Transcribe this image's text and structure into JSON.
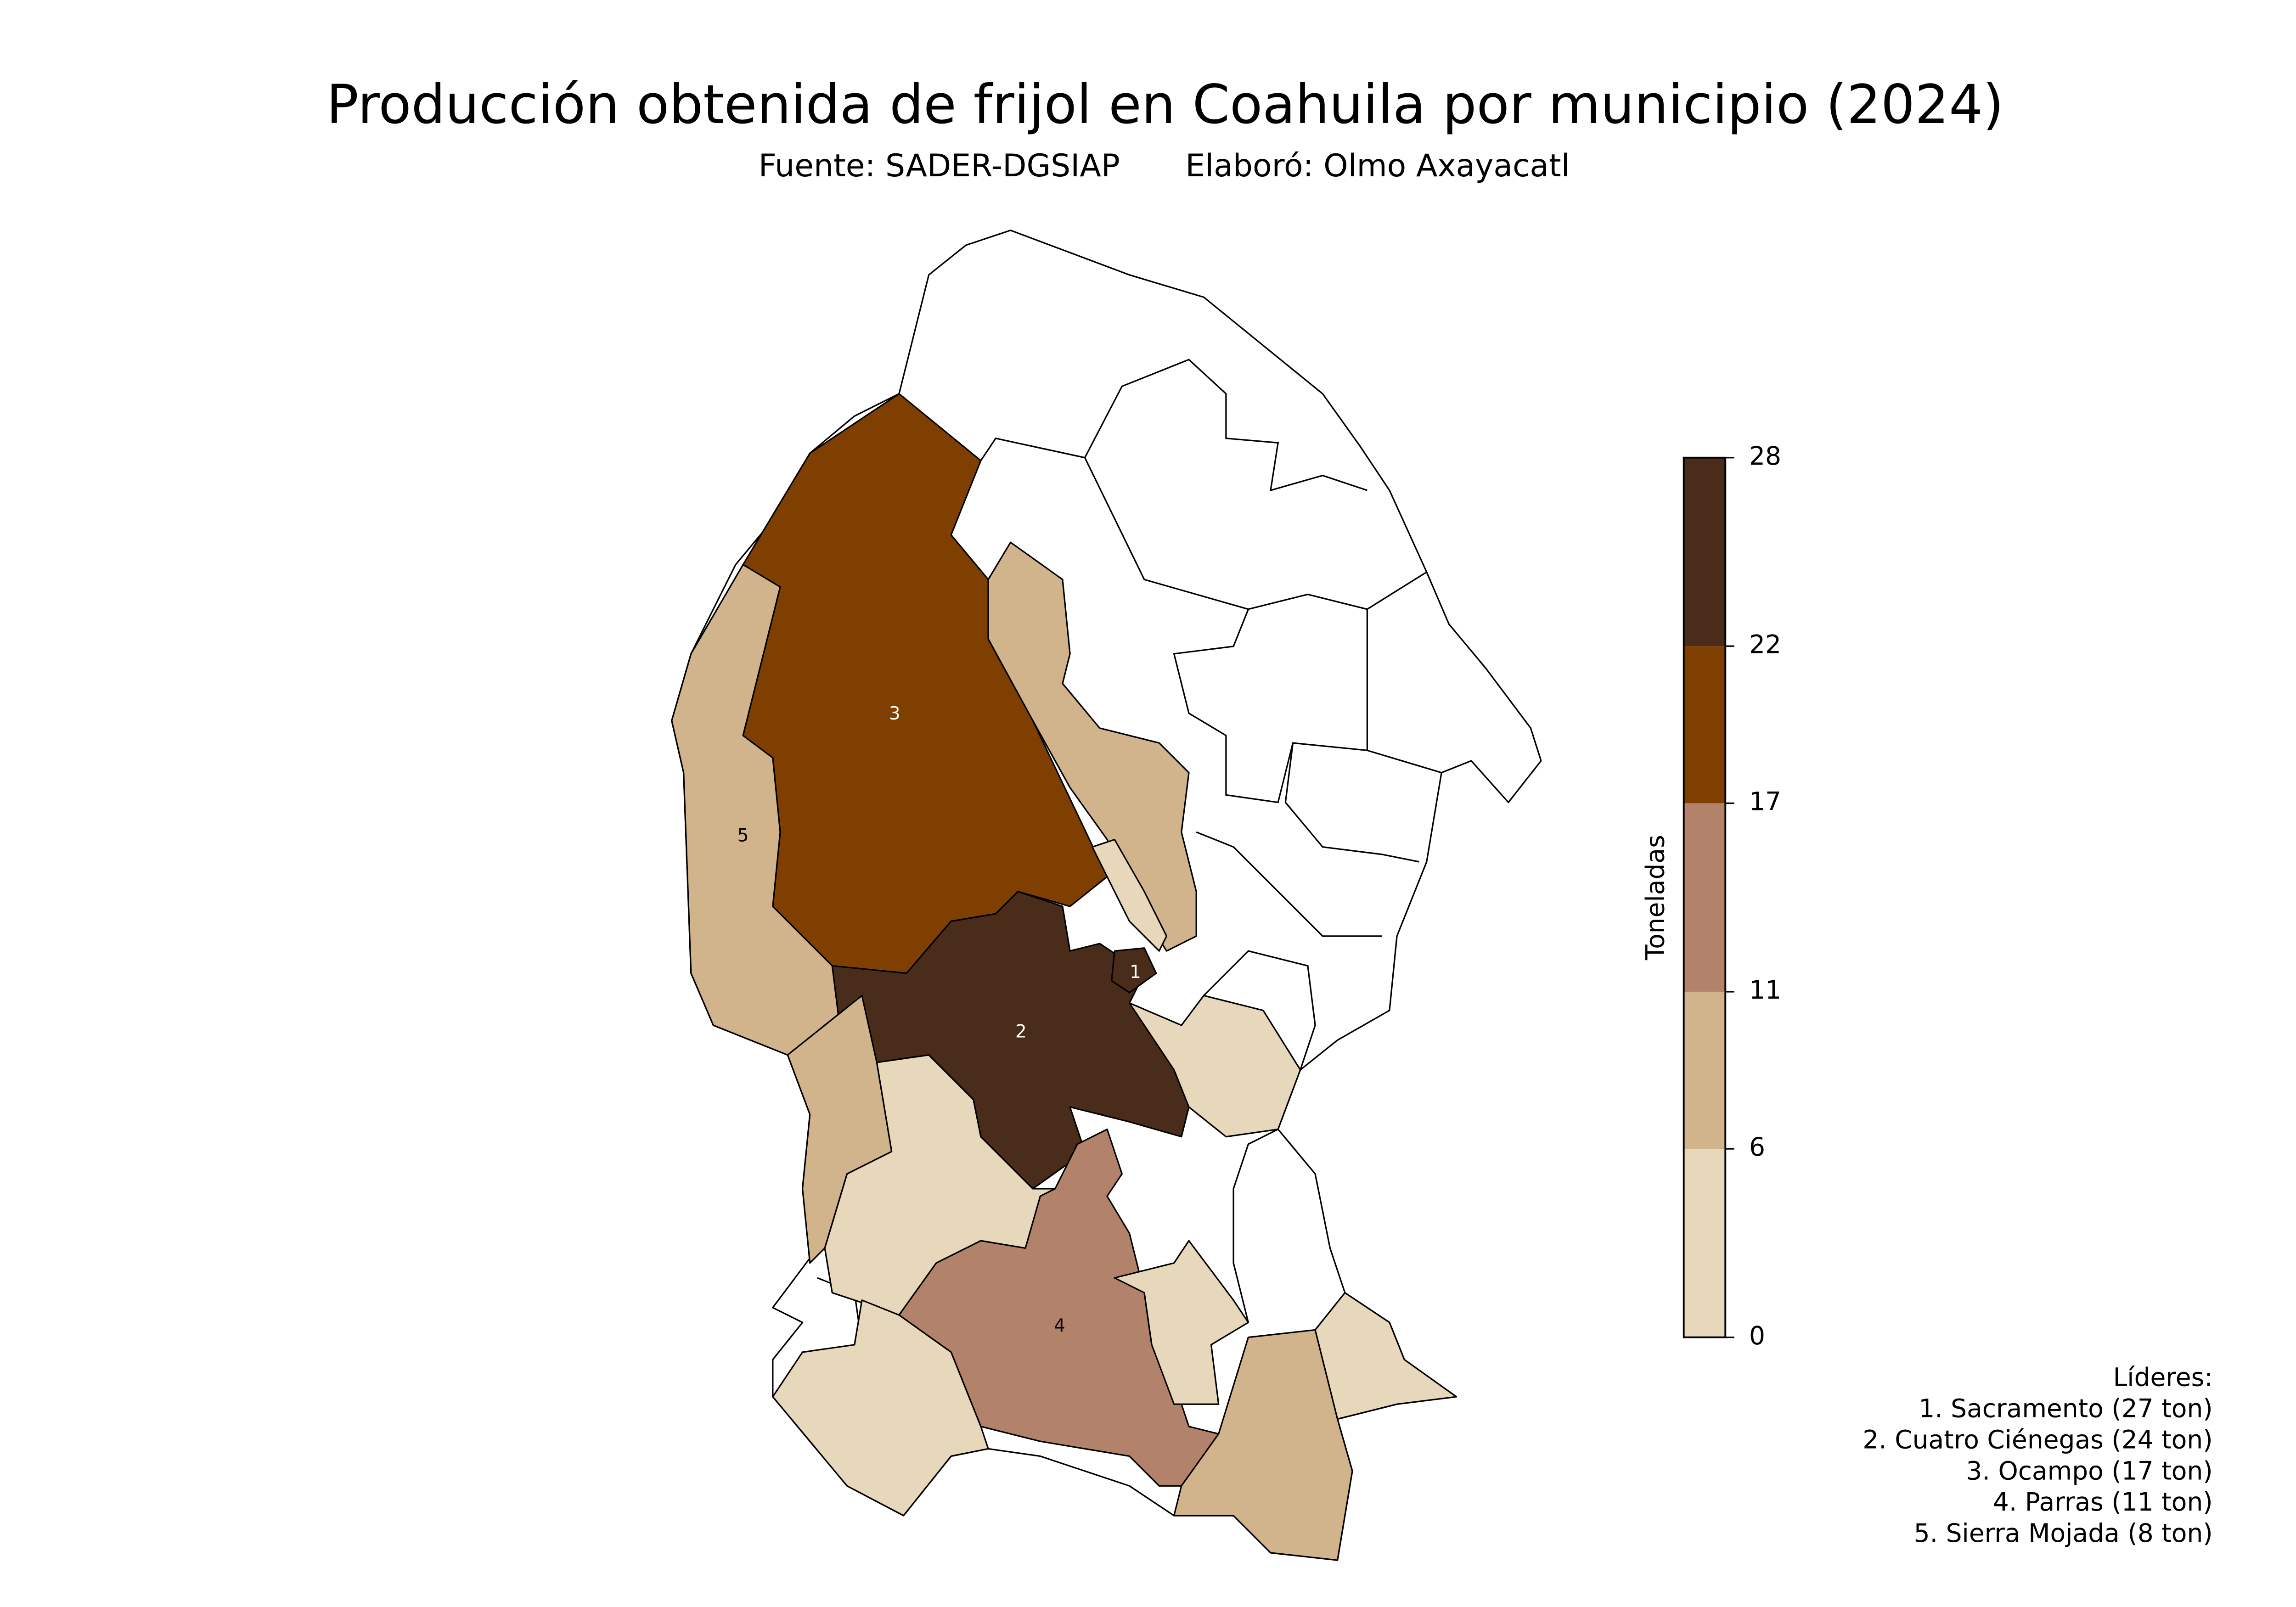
{
  "title": "Producción obtenida de frijol en Coahuila por municipio (2024)",
  "source": "Fuente: SADER-DGSIAP",
  "author": "Elaboró: Olmo Axayacatl",
  "map_labels": [
    "1",
    "2",
    "3",
    "4",
    "5"
  ],
  "colorbar": {
    "label": "Toneladas",
    "lim": [
      0,
      28
    ],
    "ticks": [
      0,
      6,
      11,
      17,
      22,
      28
    ],
    "colors": [
      "#e8d8bb",
      "#d2b48c",
      "#b3826a",
      "#7f3f00",
      "#4a2c1a"
    ]
  },
  "leaders": {
    "title": "Líderes:",
    "items": [
      "1. Sacramento (27 ton)",
      "2. Cuatro Ciénegas (24 ton)",
      "3. Ocampo (17 ton)",
      "4. Parras (11 ton)",
      "5. Sierra Mojada (8 ton)"
    ]
  }
}
